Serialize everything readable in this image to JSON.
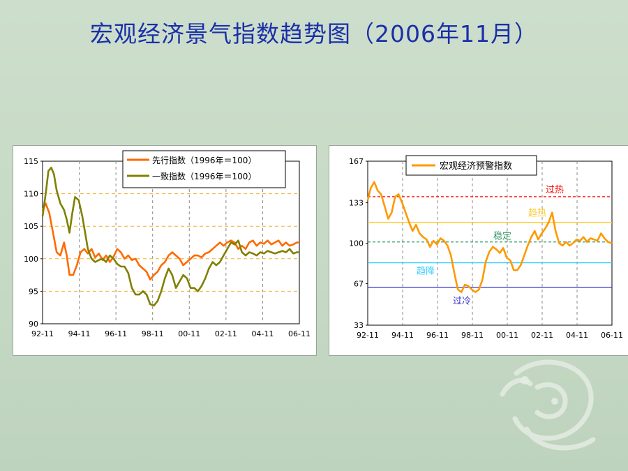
{
  "slide": {
    "title": "宏观经济景气指数趋势图（2006年11月）"
  },
  "chart_data": [
    {
      "type": "line",
      "x_tick_labels": [
        "92-11",
        "94-11",
        "96-11",
        "98-11",
        "00-11",
        "02-11",
        "04-11",
        "06-11"
      ],
      "x_range": [
        1992.83,
        2006.83
      ],
      "yticks": [
        90,
        95,
        100,
        105,
        110,
        115
      ],
      "ylim": [
        90,
        115
      ],
      "reference_lines": [
        95,
        100,
        105,
        110
      ],
      "grid": true,
      "legend_position": "top-right",
      "series": [
        {
          "name": "先行指数（1996年＝100）",
          "color": "#ff6a00",
          "points": [
            [
              1992.83,
              107.5
            ],
            [
              1993.0,
              108.5
            ],
            [
              1993.2,
              107.0
            ],
            [
              1993.4,
              104.0
            ],
            [
              1993.6,
              101.0
            ],
            [
              1993.8,
              100.5
            ],
            [
              1994.0,
              102.5
            ],
            [
              1994.15,
              100.5
            ],
            [
              1994.3,
              97.5
            ],
            [
              1994.5,
              97.5
            ],
            [
              1994.7,
              99.0
            ],
            [
              1994.9,
              101.0
            ],
            [
              1995.1,
              101.5
            ],
            [
              1995.3,
              100.8
            ],
            [
              1995.5,
              101.5
            ],
            [
              1995.7,
              100.2
            ],
            [
              1995.9,
              100.8
            ],
            [
              1996.1,
              99.8
            ],
            [
              1996.3,
              100.5
            ],
            [
              1996.5,
              99.5
            ],
            [
              1996.7,
              100.3
            ],
            [
              1996.9,
              101.5
            ],
            [
              1997.1,
              101.0
            ],
            [
              1997.3,
              100.0
            ],
            [
              1997.5,
              100.5
            ],
            [
              1997.7,
              99.8
            ],
            [
              1997.9,
              100.0
            ],
            [
              1998.1,
              99.0
            ],
            [
              1998.3,
              98.5
            ],
            [
              1998.5,
              98.0
            ],
            [
              1998.7,
              96.8
            ],
            [
              1998.9,
              97.5
            ],
            [
              1999.1,
              98.0
            ],
            [
              1999.3,
              99.0
            ],
            [
              1999.5,
              99.5
            ],
            [
              1999.7,
              100.5
            ],
            [
              1999.9,
              101.0
            ],
            [
              2000.1,
              100.5
            ],
            [
              2000.3,
              100.0
            ],
            [
              2000.5,
              99.0
            ],
            [
              2000.7,
              99.5
            ],
            [
              2000.9,
              100.0
            ],
            [
              2001.1,
              100.5
            ],
            [
              2001.3,
              100.5
            ],
            [
              2001.5,
              100.2
            ],
            [
              2001.7,
              100.8
            ],
            [
              2001.9,
              101.0
            ],
            [
              2002.1,
              101.5
            ],
            [
              2002.3,
              102.0
            ],
            [
              2002.5,
              102.5
            ],
            [
              2002.7,
              102.0
            ],
            [
              2002.9,
              102.5
            ],
            [
              2003.1,
              102.8
            ],
            [
              2003.3,
              102.5
            ],
            [
              2003.5,
              101.5
            ],
            [
              2003.7,
              102.0
            ],
            [
              2003.9,
              101.5
            ],
            [
              2004.1,
              102.5
            ],
            [
              2004.3,
              102.8
            ],
            [
              2004.5,
              102.0
            ],
            [
              2004.7,
              102.5
            ],
            [
              2004.9,
              102.3
            ],
            [
              2005.1,
              102.8
            ],
            [
              2005.3,
              102.2
            ],
            [
              2005.5,
              102.5
            ],
            [
              2005.7,
              102.8
            ],
            [
              2005.9,
              102.0
            ],
            [
              2006.1,
              102.5
            ],
            [
              2006.3,
              102.0
            ],
            [
              2006.5,
              102.2
            ],
            [
              2006.7,
              102.5
            ],
            [
              2006.83,
              102.5
            ]
          ]
        },
        {
          "name": "一致指数（1996年＝100）",
          "color": "#808000",
          "points": [
            [
              1992.83,
              106.5
            ],
            [
              1993.0,
              110.0
            ],
            [
              1993.15,
              113.5
            ],
            [
              1993.3,
              114.0
            ],
            [
              1993.45,
              113.0
            ],
            [
              1993.6,
              110.5
            ],
            [
              1993.8,
              108.5
            ],
            [
              1994.0,
              107.5
            ],
            [
              1994.15,
              106.0
            ],
            [
              1994.3,
              104.0
            ],
            [
              1994.45,
              107.0
            ],
            [
              1994.6,
              109.5
            ],
            [
              1994.8,
              109.0
            ],
            [
              1995.0,
              106.5
            ],
            [
              1995.15,
              104.0
            ],
            [
              1995.3,
              101.5
            ],
            [
              1995.5,
              100.0
            ],
            [
              1995.7,
              99.5
            ],
            [
              1995.9,
              99.8
            ],
            [
              1996.1,
              100.0
            ],
            [
              1996.3,
              99.5
            ],
            [
              1996.5,
              100.5
            ],
            [
              1996.7,
              100.0
            ],
            [
              1996.9,
              99.2
            ],
            [
              1997.1,
              98.8
            ],
            [
              1997.3,
              98.8
            ],
            [
              1997.5,
              97.8
            ],
            [
              1997.7,
              95.5
            ],
            [
              1997.9,
              94.5
            ],
            [
              1998.1,
              94.5
            ],
            [
              1998.3,
              95.0
            ],
            [
              1998.5,
              94.5
            ],
            [
              1998.7,
              93.0
            ],
            [
              1998.9,
              92.8
            ],
            [
              1999.1,
              93.5
            ],
            [
              1999.3,
              95.0
            ],
            [
              1999.5,
              97.0
            ],
            [
              1999.7,
              98.5
            ],
            [
              1999.9,
              97.5
            ],
            [
              2000.1,
              95.5
            ],
            [
              2000.3,
              96.5
            ],
            [
              2000.5,
              97.5
            ],
            [
              2000.7,
              97.0
            ],
            [
              2000.9,
              95.5
            ],
            [
              2001.1,
              95.5
            ],
            [
              2001.3,
              95.0
            ],
            [
              2001.5,
              95.8
            ],
            [
              2001.7,
              97.0
            ],
            [
              2001.9,
              98.5
            ],
            [
              2002.1,
              99.5
            ],
            [
              2002.3,
              99.0
            ],
            [
              2002.5,
              99.5
            ],
            [
              2002.7,
              100.5
            ],
            [
              2002.9,
              101.5
            ],
            [
              2003.1,
              102.5
            ],
            [
              2003.3,
              102.2
            ],
            [
              2003.5,
              102.8
            ],
            [
              2003.7,
              101.0
            ],
            [
              2003.9,
              100.5
            ],
            [
              2004.1,
              101.0
            ],
            [
              2004.3,
              100.8
            ],
            [
              2004.5,
              100.5
            ],
            [
              2004.7,
              101.0
            ],
            [
              2004.9,
              100.8
            ],
            [
              2005.1,
              101.2
            ],
            [
              2005.3,
              101.0
            ],
            [
              2005.5,
              100.8
            ],
            [
              2005.7,
              101.0
            ],
            [
              2005.9,
              101.2
            ],
            [
              2006.1,
              101.0
            ],
            [
              2006.3,
              101.5
            ],
            [
              2006.5,
              100.8
            ],
            [
              2006.7,
              101.0
            ],
            [
              2006.83,
              101.0
            ]
          ]
        }
      ]
    },
    {
      "type": "line",
      "x_tick_labels": [
        "92-11",
        "94-11",
        "96-11",
        "98-11",
        "00-11",
        "02-11",
        "04-11",
        "06-11"
      ],
      "x_range": [
        1992.83,
        2006.83
      ],
      "yticks": [
        33,
        67,
        100,
        133,
        167
      ],
      "ylim": [
        33,
        167
      ],
      "grid": true,
      "legend_position": "top",
      "zones": [
        {
          "label": "过热",
          "line_value": 138,
          "color": "#ff0000",
          "dashed": true
        },
        {
          "label": "趋热",
          "line_value": 117,
          "color": "#ffcc33",
          "dashed": false
        },
        {
          "label": "稳定",
          "line_value": 101,
          "color": "#339966",
          "dashed": true
        },
        {
          "label": "趋降",
          "line_value": 84,
          "color": "#33ccff",
          "dashed": false
        },
        {
          "label": "过冷",
          "line_value": 64,
          "color": "#3333cc",
          "dashed": false
        }
      ],
      "series": [
        {
          "name": "宏观经济预警指数",
          "color": "#ff9900",
          "points": [
            [
              1992.83,
              135.0
            ],
            [
              1993.0,
              145.0
            ],
            [
              1993.2,
              150.0
            ],
            [
              1993.4,
              143.0
            ],
            [
              1993.6,
              140.0
            ],
            [
              1993.8,
              130.0
            ],
            [
              1994.0,
              120.0
            ],
            [
              1994.2,
              125.0
            ],
            [
              1994.4,
              138.0
            ],
            [
              1994.6,
              140.0
            ],
            [
              1994.8,
              133.0
            ],
            [
              1995.0,
              125.0
            ],
            [
              1995.2,
              117.0
            ],
            [
              1995.4,
              110.0
            ],
            [
              1995.6,
              115.0
            ],
            [
              1995.8,
              108.0
            ],
            [
              1996.0,
              105.0
            ],
            [
              1996.2,
              103.0
            ],
            [
              1996.4,
              97.0
            ],
            [
              1996.6,
              102.0
            ],
            [
              1996.8,
              99.0
            ],
            [
              1997.0,
              104.0
            ],
            [
              1997.2,
              102.0
            ],
            [
              1997.4,
              98.0
            ],
            [
              1997.6,
              90.0
            ],
            [
              1997.8,
              75.0
            ],
            [
              1998.0,
              62.0
            ],
            [
              1998.2,
              60.0
            ],
            [
              1998.4,
              66.0
            ],
            [
              1998.6,
              65.0
            ],
            [
              1998.8,
              62.0
            ],
            [
              1999.0,
              60.0
            ],
            [
              1999.2,
              62.0
            ],
            [
              1999.4,
              70.0
            ],
            [
              1999.6,
              85.0
            ],
            [
              1999.8,
              93.0
            ],
            [
              2000.0,
              97.0
            ],
            [
              2000.2,
              95.0
            ],
            [
              2000.4,
              92.0
            ],
            [
              2000.6,
              96.0
            ],
            [
              2000.8,
              88.0
            ],
            [
              2001.0,
              86.0
            ],
            [
              2001.2,
              78.0
            ],
            [
              2001.4,
              78.0
            ],
            [
              2001.6,
              82.0
            ],
            [
              2001.8,
              90.0
            ],
            [
              2002.0,
              98.0
            ],
            [
              2002.2,
              105.0
            ],
            [
              2002.4,
              110.0
            ],
            [
              2002.6,
              103.0
            ],
            [
              2002.8,
              108.0
            ],
            [
              2003.0,
              112.0
            ],
            [
              2003.2,
              117.0
            ],
            [
              2003.4,
              125.0
            ],
            [
              2003.6,
              110.0
            ],
            [
              2003.8,
              100.0
            ],
            [
              2004.0,
              98.0
            ],
            [
              2004.2,
              101.0
            ],
            [
              2004.4,
              98.0
            ],
            [
              2004.6,
              100.0
            ],
            [
              2004.8,
              103.0
            ],
            [
              2005.0,
              102.0
            ],
            [
              2005.2,
              105.0
            ],
            [
              2005.4,
              101.0
            ],
            [
              2005.6,
              104.0
            ],
            [
              2005.8,
              103.0
            ],
            [
              2006.0,
              102.0
            ],
            [
              2006.2,
              108.0
            ],
            [
              2006.4,
              104.0
            ],
            [
              2006.6,
              101.0
            ],
            [
              2006.83,
              100.0
            ]
          ]
        }
      ]
    }
  ]
}
